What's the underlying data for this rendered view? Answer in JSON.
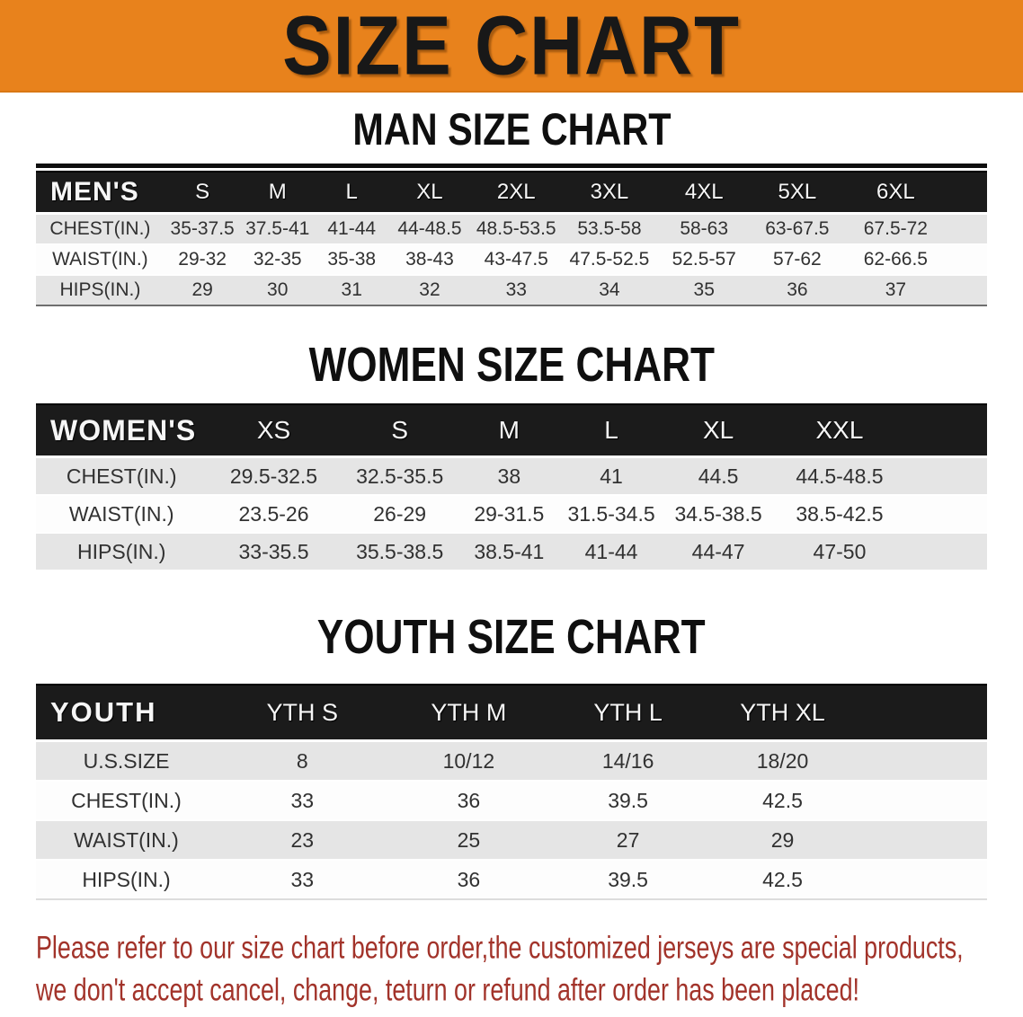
{
  "banner": {
    "title": "SIZE CHART"
  },
  "colors": {
    "banner_orange": "#E8821C",
    "header_black": "#1B1B1B",
    "row_gray": "#E5E5E5",
    "row_white": "#FDFDFD",
    "disclaimer_red": "#A2332A"
  },
  "chart_data": [
    {
      "type": "table",
      "title": "MAN SIZE CHART",
      "corner_label": "MEN'S",
      "columns": [
        "S",
        "M",
        "L",
        "XL",
        "2XL",
        "3XL",
        "4XL",
        "5XL",
        "6XL"
      ],
      "rows": [
        {
          "label": "CHEST(IN.)",
          "values": [
            "35-37.5",
            "37.5-41",
            "41-44",
            "44-48.5",
            "48.5-53.5",
            "53.5-58",
            "58-63",
            "63-67.5",
            "67.5-72"
          ]
        },
        {
          "label": "WAIST(IN.)",
          "values": [
            "29-32",
            "32-35",
            "35-38",
            "38-43",
            "43-47.5",
            "47.5-52.5",
            "52.5-57",
            "57-62",
            "62-66.5"
          ]
        },
        {
          "label": "HIPS(IN.)",
          "values": [
            "29",
            "30",
            "31",
            "32",
            "33",
            "34",
            "35",
            "36",
            "37"
          ]
        }
      ]
    },
    {
      "type": "table",
      "title": "WOMEN SIZE CHART",
      "corner_label": "WOMEN'S",
      "columns": [
        "XS",
        "S",
        "M",
        "L",
        "XL",
        "XXL"
      ],
      "rows": [
        {
          "label": "CHEST(IN.)",
          "values": [
            "29.5-32.5",
            "32.5-35.5",
            "38",
            "41",
            "44.5",
            "44.5-48.5"
          ]
        },
        {
          "label": "WAIST(IN.)",
          "values": [
            "23.5-26",
            "26-29",
            "29-31.5",
            "31.5-34.5",
            "34.5-38.5",
            "38.5-42.5"
          ]
        },
        {
          "label": "HIPS(IN.)",
          "values": [
            "33-35.5",
            "35.5-38.5",
            "38.5-41",
            "41-44",
            "44-47",
            "47-50"
          ]
        }
      ]
    },
    {
      "type": "table",
      "title": "YOUTH SIZE CHART",
      "corner_label": "YOUTH",
      "columns": [
        "YTH S",
        "YTH M",
        "YTH L",
        "YTH XL"
      ],
      "rows": [
        {
          "label": "U.S.SIZE",
          "values": [
            "8",
            "10/12",
            "14/16",
            "18/20"
          ]
        },
        {
          "label": "CHEST(IN.)",
          "values": [
            "33",
            "36",
            "39.5",
            "42.5"
          ]
        },
        {
          "label": "WAIST(IN.)",
          "values": [
            "23",
            "25",
            "27",
            "29"
          ]
        },
        {
          "label": "HIPS(IN.)",
          "values": [
            "33",
            "36",
            "39.5",
            "42.5"
          ]
        }
      ]
    }
  ],
  "disclaimer": {
    "line1": "Please refer to our size chart before order,the customized jerseys are special products,",
    "line2": "we don't accept cancel, change, teturn or refund after order has been placed!"
  }
}
